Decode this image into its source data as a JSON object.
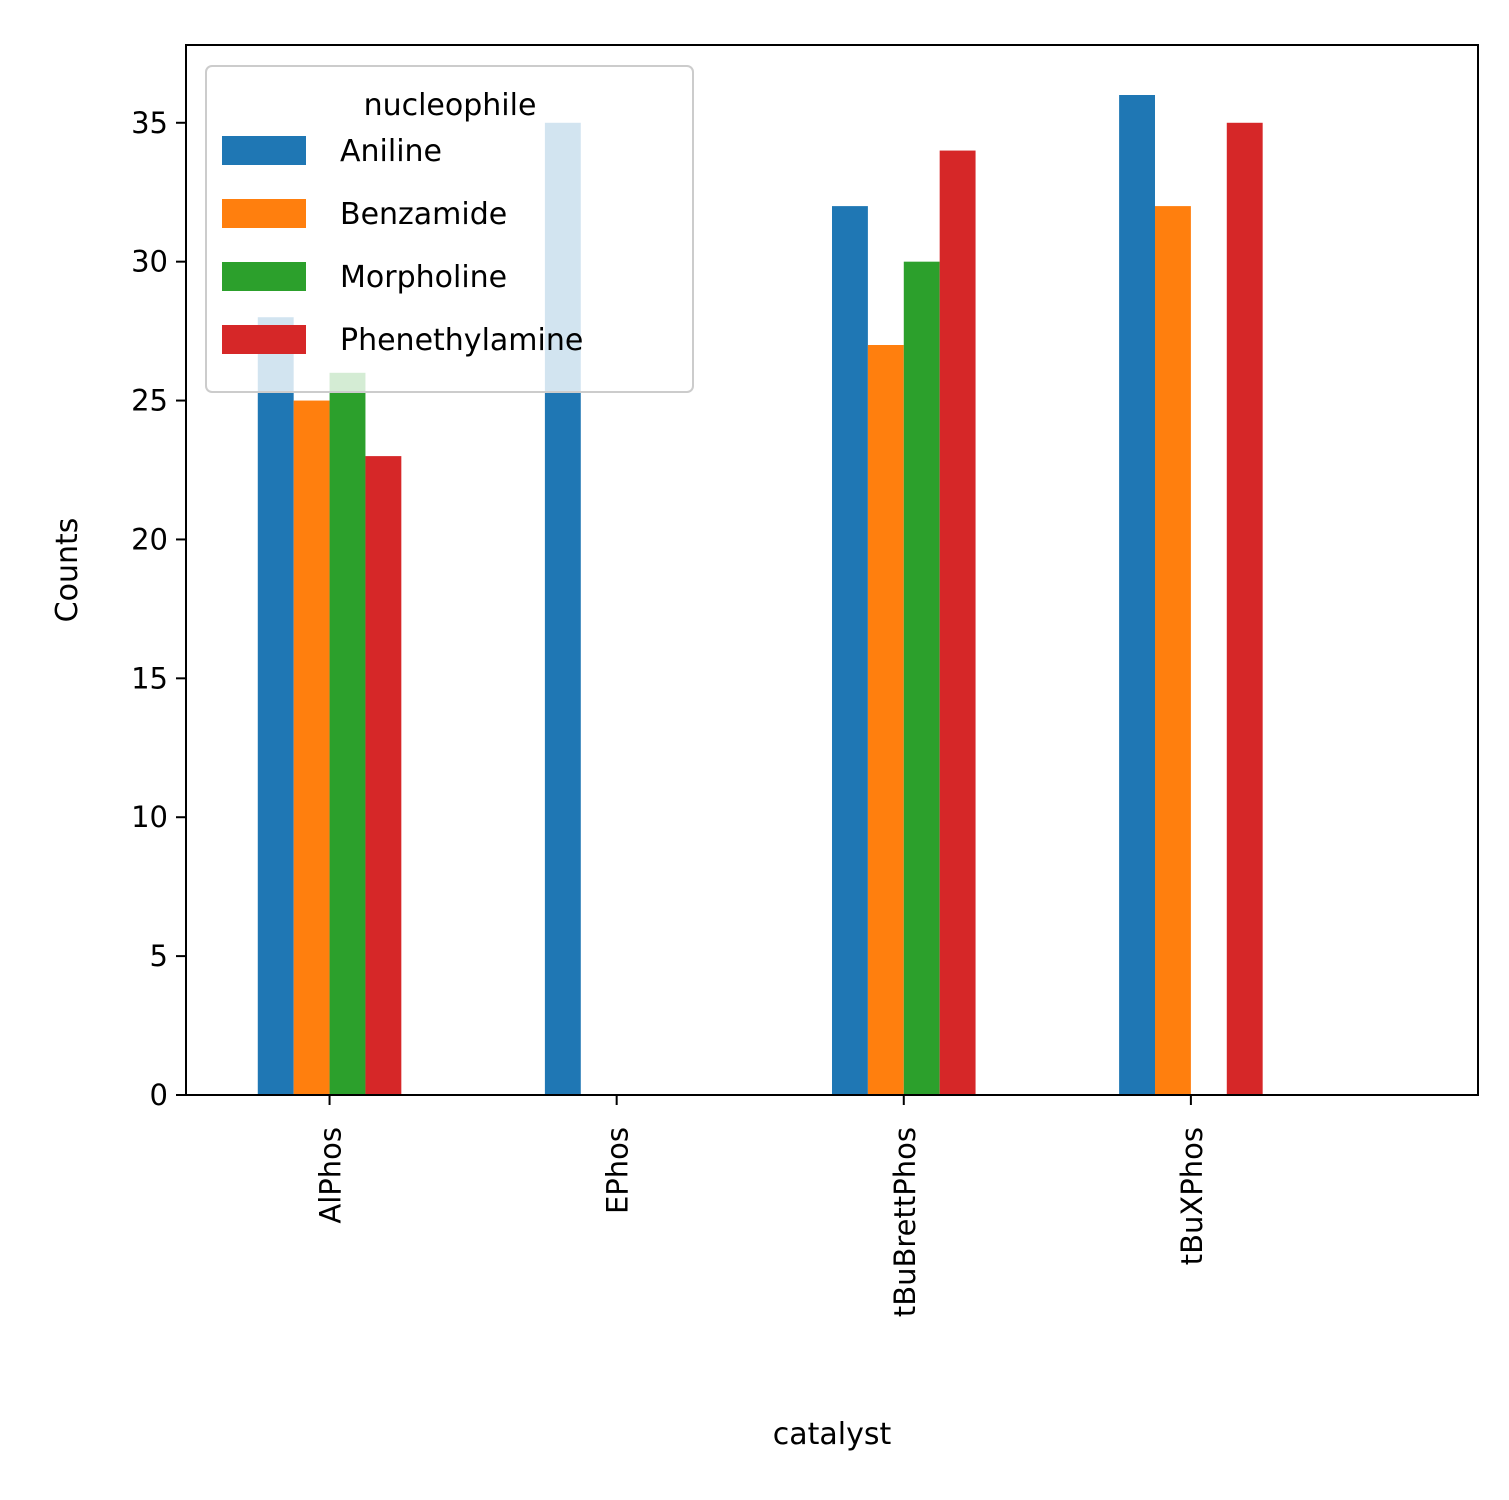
{
  "chart_data": {
    "type": "bar",
    "title": "",
    "xlabel": "catalyst",
    "ylabel": "Counts",
    "categories": [
      "AlPhos",
      "EPhos",
      "tBuBrettPhos",
      "tBuXPhos"
    ],
    "series": [
      {
        "name": "Aniline",
        "color": "#1f77b4",
        "values": [
          28,
          35,
          32,
          36
        ]
      },
      {
        "name": "Benzamide",
        "color": "#ff7f0e",
        "values": [
          25,
          0,
          27,
          32
        ]
      },
      {
        "name": "Morpholine",
        "color": "#2ca02c",
        "values": [
          26,
          0,
          30,
          0
        ]
      },
      {
        "name": "Phenethylamine",
        "color": "#d62728",
        "values": [
          23,
          0,
          34,
          35
        ]
      }
    ],
    "ylim": [
      0,
      37.8
    ],
    "yticks": [
      0,
      5,
      10,
      15,
      20,
      25,
      30,
      35
    ],
    "legend": {
      "title": "nucleophile",
      "position": "top-left"
    },
    "grid": false,
    "x_tick_rotation": "vertical"
  }
}
